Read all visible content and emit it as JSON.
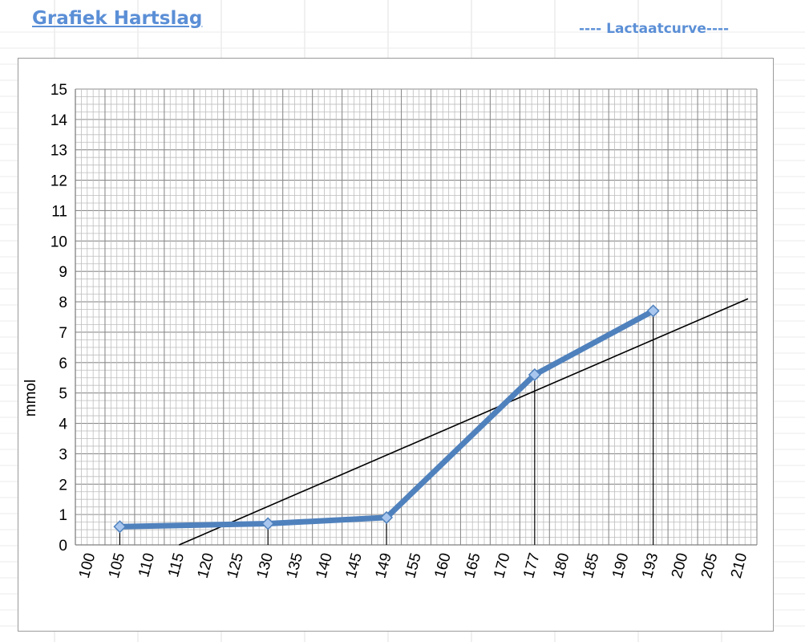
{
  "header": {
    "title": "Grafiek Hartslag",
    "subtitle": "---- Lactaatcurve----"
  },
  "colors": {
    "accent": "#5b8fd6",
    "series": "#4f81bd",
    "marker_fill": "#a9c7ee",
    "trendline": "#000000",
    "grid": "#a6a6a6"
  },
  "chart_data": {
    "type": "line",
    "title": "",
    "xlabel": "",
    "ylabel": "mmol",
    "x_tick_labels": [
      "100",
      "105",
      "110",
      "115",
      "120",
      "125",
      "130",
      "135",
      "140",
      "145",
      "149",
      "155",
      "160",
      "165",
      "170",
      "177",
      "180",
      "185",
      "190",
      "193",
      "200",
      "205",
      "210"
    ],
    "ylim": [
      0,
      15
    ],
    "y_ticks": [
      0,
      1,
      2,
      3,
      4,
      5,
      6,
      7,
      8,
      9,
      10,
      11,
      12,
      13,
      14,
      15
    ],
    "grid": true,
    "legend": "none",
    "series": [
      {
        "name": "",
        "points": [
          {
            "x": 105,
            "y": 0.6
          },
          {
            "x": 130,
            "y": 0.7
          },
          {
            "x": 149,
            "y": 0.9
          },
          {
            "x": 177,
            "y": 5.6
          },
          {
            "x": 193,
            "y": 7.7
          }
        ]
      }
    ],
    "trendline": {
      "from": {
        "x": 115,
        "y": 0
      },
      "to": {
        "x": 211,
        "y": 8.1
      }
    },
    "drop_lines_at": [
      105,
      130,
      149,
      177,
      193
    ]
  }
}
